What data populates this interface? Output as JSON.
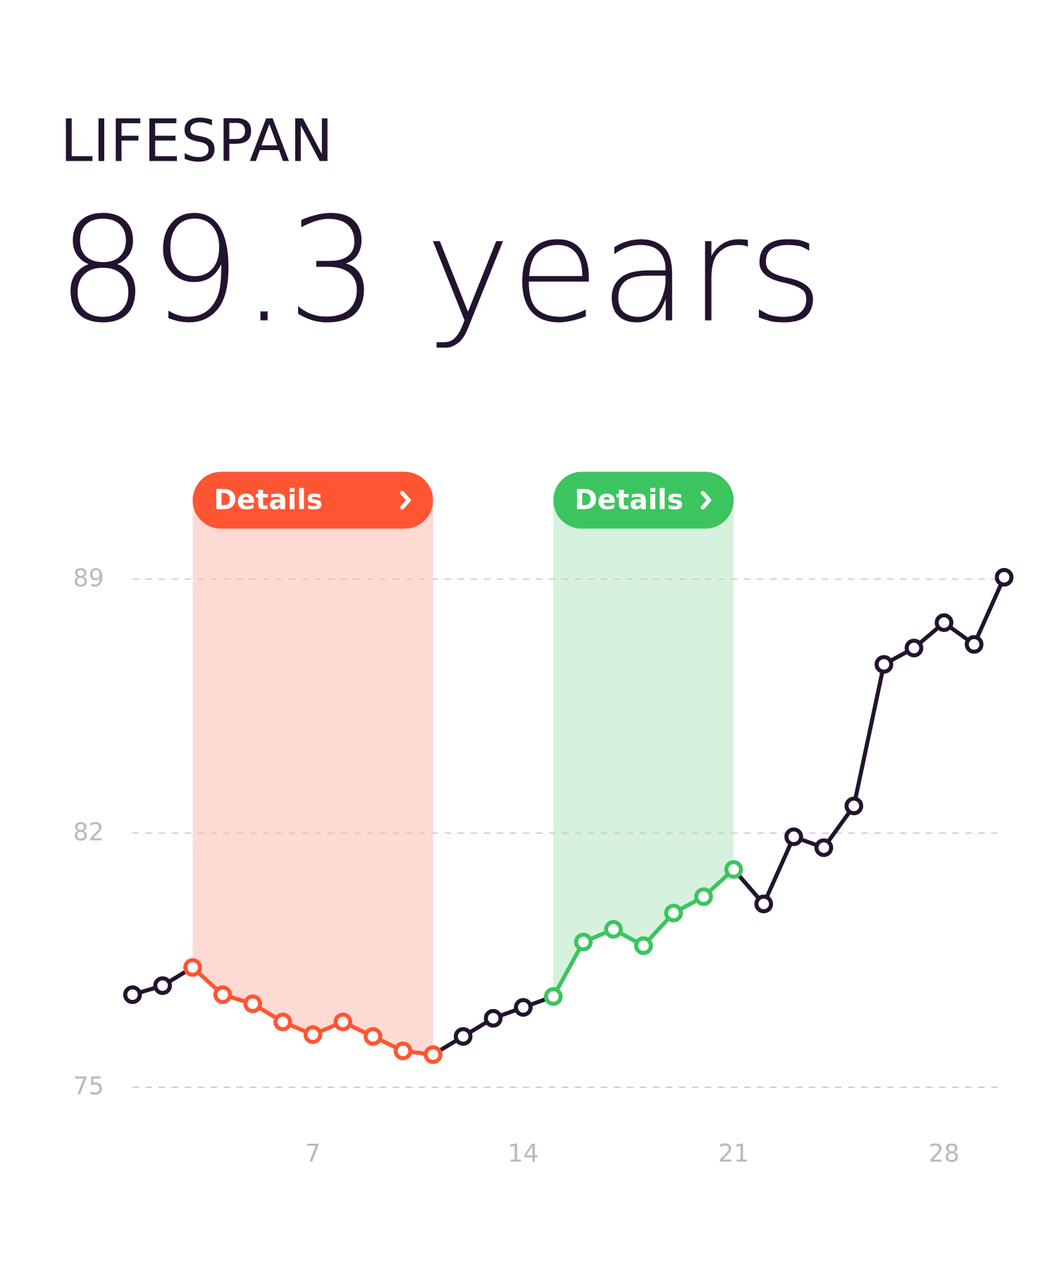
{
  "header": {
    "label": "LIFESPAN",
    "value": "89.3 years"
  },
  "chart_data": {
    "type": "line",
    "x": [
      1,
      2,
      3,
      4,
      5,
      6,
      7,
      8,
      9,
      10,
      11,
      12,
      13,
      14,
      15,
      16,
      17,
      18,
      19,
      20,
      21,
      22,
      23,
      24,
      25,
      26,
      27,
      28,
      29,
      30
    ],
    "series": [
      {
        "color": "#22142e",
        "values": [
          77.55,
          77.8,
          78.3,
          77.55,
          77.3,
          76.8,
          76.45,
          76.8,
          76.4,
          76.0,
          75.9,
          76.4,
          76.9,
          77.2,
          77.5,
          79.0,
          79.35,
          78.9,
          79.8,
          80.25,
          81.0,
          80.05,
          81.9,
          81.6,
          82.75,
          86.65,
          87.1,
          87.8,
          87.2,
          89.05
        ]
      }
    ],
    "xlim": [
      1,
      30
    ],
    "xticks": [
      7,
      14,
      21,
      28
    ],
    "ylim": [
      75,
      89
    ],
    "yticks": [
      75,
      82,
      89
    ],
    "grid": true,
    "highlights": [
      {
        "label": "Details",
        "color": "#ff5533",
        "shade": "#fddbd4",
        "start": 3,
        "end": 11
      },
      {
        "label": "Details",
        "color": "#3cc45e",
        "shade": "#d6f2de",
        "start": 15,
        "end": 21
      }
    ]
  }
}
